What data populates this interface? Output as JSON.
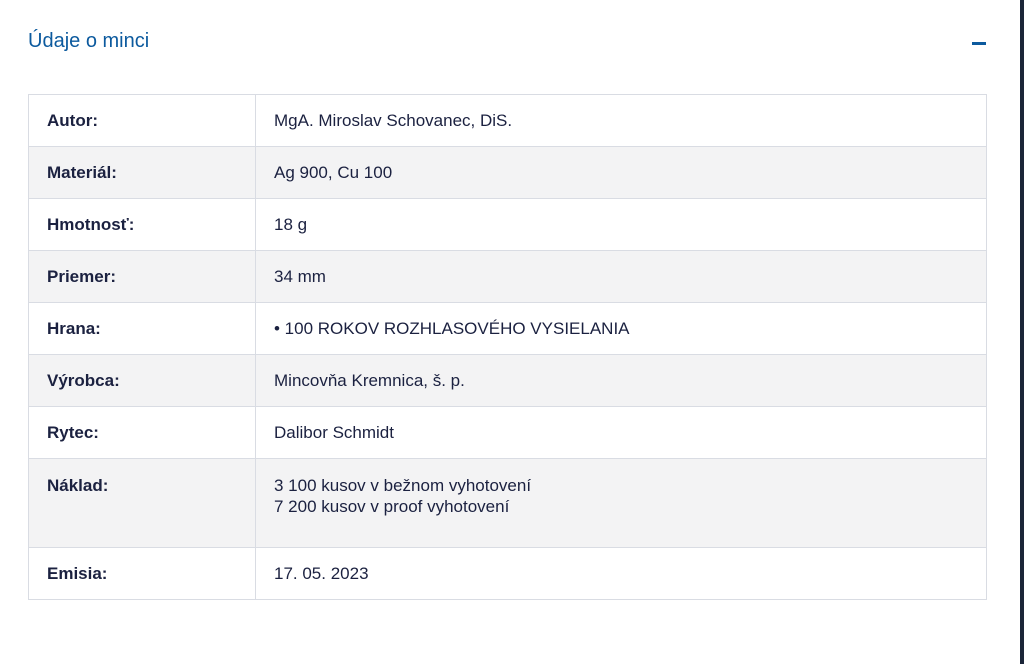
{
  "section": {
    "title": "Údaje o minci",
    "collapse_icon": "minus-icon"
  },
  "colors": {
    "accent": "#0c5a9e",
    "text": "#1b2140"
  },
  "rows": [
    {
      "label": "Autor:",
      "value": "MgA. Miroslav Schovanec, DiS."
    },
    {
      "label": "Materiál:",
      "value": "Ag 900, Cu 100"
    },
    {
      "label": "Hmotnosť:",
      "value": "18 g"
    },
    {
      "label": "Priemer:",
      "value": "34 mm"
    },
    {
      "label": "Hrana:",
      "value": "• 100 ROKOV ROZHLASOVÉHO VYSIELANIA"
    },
    {
      "label": "Výrobca:",
      "value": "Mincovňa Kremnica, š. p."
    },
    {
      "label": "Rytec:",
      "value": "Dalibor Schmidt"
    },
    {
      "label": "Náklad:",
      "value_lines": [
        "3 100 kusov v bežnom vyhotovení",
        "7 200 kusov v proof vyhotovení"
      ]
    },
    {
      "label": "Emisia:",
      "value": "17. 05. 2023"
    }
  ]
}
